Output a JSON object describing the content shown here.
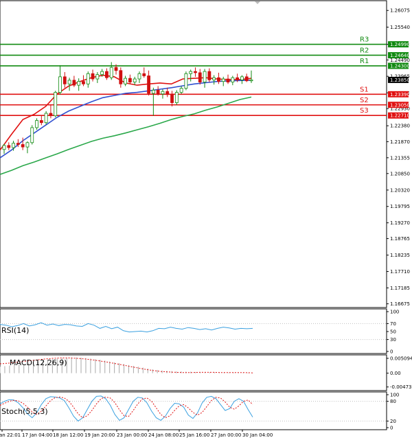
{
  "chart_data": {
    "type": "candlestick",
    "main": {
      "ylim": [
        1.166,
        1.263
      ],
      "price_ticks": [
        "1.26075",
        "1.25540",
        "1.24990",
        "1.24490",
        "1.23965",
        "1.23435",
        "1.22930",
        "1.22380",
        "1.21870",
        "1.21355",
        "1.20850",
        "1.20320",
        "1.19795",
        "1.19270",
        "1.18765",
        "1.18235",
        "1.17710",
        "1.17185",
        "1.16675"
      ],
      "current_price": {
        "label": "1.23850",
        "value": 1.2385
      },
      "levels": [
        {
          "name": "R3",
          "value": 1.2499,
          "label": "1.24990",
          "color": "#118a11"
        },
        {
          "name": "R2",
          "value": 1.2464,
          "label": "1.24640",
          "color": "#118a11"
        },
        {
          "name": "R1",
          "value": 1.243,
          "label": "1.24300",
          "color": "#118a11"
        },
        {
          "name": "S1",
          "value": 1.2339,
          "label": "1.23390",
          "color": "#e01010"
        },
        {
          "name": "S2",
          "value": 1.2305,
          "label": "1.23050",
          "color": "#e01010"
        },
        {
          "name": "S3",
          "value": 1.2271,
          "label": "1.22710",
          "color": "#e01010"
        }
      ],
      "candles": [
        [
          1.2162,
          1.218,
          1.2148,
          1.2175
        ],
        [
          1.2175,
          1.2185,
          1.216,
          1.2168
        ],
        [
          1.2168,
          1.219,
          1.2158,
          1.2182
        ],
        [
          1.2182,
          1.2195,
          1.217,
          1.2178
        ],
        [
          1.2178,
          1.22,
          1.216,
          1.217
        ],
        [
          1.217,
          1.2188,
          1.215,
          1.2184
        ],
        [
          1.2184,
          1.224,
          1.2178,
          1.2232
        ],
        [
          1.2232,
          1.2262,
          1.2225,
          1.2255
        ],
        [
          1.2255,
          1.2272,
          1.224,
          1.2248
        ],
        [
          1.2248,
          1.2285,
          1.2242,
          1.2278
        ],
        [
          1.2278,
          1.2305,
          1.2262,
          1.227
        ],
        [
          1.227,
          1.235,
          1.2265,
          1.2345
        ],
        [
          1.2345,
          1.2432,
          1.2338,
          1.2395
        ],
        [
          1.2395,
          1.241,
          1.236,
          1.2372
        ],
        [
          1.2372,
          1.2392,
          1.235,
          1.2384
        ],
        [
          1.2384,
          1.2398,
          1.2362,
          1.2368
        ],
        [
          1.2368,
          1.239,
          1.235,
          1.238
        ],
        [
          1.238,
          1.24,
          1.2365,
          1.2372
        ],
        [
          1.2372,
          1.2412,
          1.236,
          1.2405
        ],
        [
          1.2405,
          1.2418,
          1.238,
          1.2388
        ],
        [
          1.2388,
          1.241,
          1.2375,
          1.2402
        ],
        [
          1.2402,
          1.242,
          1.2395,
          1.2412
        ],
        [
          1.2412,
          1.2422,
          1.2385,
          1.2392
        ],
        [
          1.2392,
          1.2442,
          1.2385,
          1.2425
        ],
        [
          1.2425,
          1.2435,
          1.2402,
          1.2415
        ],
        [
          1.2415,
          1.2425,
          1.236,
          1.2372
        ],
        [
          1.2372,
          1.2398,
          1.2365,
          1.239
        ],
        [
          1.239,
          1.2402,
          1.2372,
          1.2378
        ],
        [
          1.2378,
          1.2395,
          1.2368,
          1.2388
        ],
        [
          1.2388,
          1.2412,
          1.2375,
          1.2405
        ],
        [
          1.2405,
          1.2425,
          1.2392,
          1.2398
        ],
        [
          1.2398,
          1.2415,
          1.2335,
          1.2342
        ],
        [
          1.2342,
          1.236,
          1.227,
          1.2352
        ],
        [
          1.2352,
          1.2365,
          1.2335,
          1.234
        ],
        [
          1.234,
          1.2355,
          1.2325,
          1.2348
        ],
        [
          1.2348,
          1.236,
          1.233,
          1.2338
        ],
        [
          1.2338,
          1.235,
          1.23,
          1.2312
        ],
        [
          1.2312,
          1.2352,
          1.2305,
          1.2345
        ],
        [
          1.2345,
          1.2365,
          1.234,
          1.2358
        ],
        [
          1.2358,
          1.2412,
          1.2352,
          1.2405
        ],
        [
          1.2405,
          1.2418,
          1.238,
          1.2412
        ],
        [
          1.2412,
          1.2425,
          1.2395,
          1.2408
        ],
        [
          1.2408,
          1.242,
          1.237,
          1.2378
        ],
        [
          1.2378,
          1.242,
          1.236,
          1.2412
        ],
        [
          1.2412,
          1.2422,
          1.2378,
          1.2385
        ],
        [
          1.2385,
          1.24,
          1.237,
          1.2392
        ],
        [
          1.2392,
          1.2408,
          1.2372,
          1.238
        ],
        [
          1.238,
          1.2395,
          1.2365,
          1.2388
        ],
        [
          1.2388,
          1.2402,
          1.2372,
          1.2378
        ],
        [
          1.2378,
          1.2398,
          1.2368,
          1.2392
        ],
        [
          1.2392,
          1.2405,
          1.2378,
          1.2385
        ],
        [
          1.2385,
          1.24,
          1.2372,
          1.2395
        ],
        [
          1.2395,
          1.2405,
          1.2378,
          1.2382
        ],
        [
          1.2382,
          1.2415,
          1.2375,
          1.2385
        ]
      ],
      "moving_averages": [
        {
          "color": "#e01010",
          "values": [
            1.216,
            1.221,
            1.2258,
            1.2275,
            1.23,
            1.234,
            1.2365,
            1.238,
            1.2392,
            1.24,
            1.2395,
            1.2375,
            1.2368,
            1.2372,
            1.2375,
            1.2372,
            1.2388,
            1.239,
            1.2392,
            1.2388,
            1.2386,
            1.2386,
            1.239
          ]
        },
        {
          "color": "#3050d0",
          "values": [
            1.2135,
            1.216,
            1.219,
            1.2215,
            1.224,
            1.2265,
            1.2285,
            1.23,
            1.2315,
            1.2328,
            1.2335,
            1.2342,
            1.2345,
            1.235,
            1.2355,
            1.236,
            1.2366,
            1.2372,
            1.2376,
            1.238,
            1.2382,
            1.2383,
            1.2384
          ]
        },
        {
          "color": "#2aa84a",
          "values": [
            1.2082,
            1.2095,
            1.211,
            1.2122,
            1.2135,
            1.2148,
            1.2162,
            1.2175,
            1.2188,
            1.2198,
            1.2206,
            1.2215,
            1.2225,
            1.2235,
            1.2246,
            1.2258,
            1.2268,
            1.2276,
            1.2288,
            1.2298,
            1.231,
            1.2322,
            1.233
          ]
        }
      ]
    },
    "rsi": {
      "label": "RSI(14)",
      "ylim": [
        0,
        100
      ],
      "levels": [
        {
          "label": "70",
          "value": 70
        },
        {
          "label": "30",
          "value": 30
        }
      ],
      "ticks": [
        {
          "label": "100",
          "value": 100
        },
        {
          "label": "70",
          "value": 70
        },
        {
          "label": "50",
          "value": 50
        },
        {
          "label": "30",
          "value": 30
        },
        {
          "label": "0",
          "value": 0
        }
      ],
      "values": [
        68,
        66,
        62,
        65,
        70,
        64,
        67,
        72,
        66,
        69,
        65,
        68,
        67,
        64,
        63,
        70,
        66,
        58,
        63,
        57,
        61,
        52,
        49,
        50,
        51,
        49,
        52,
        58,
        57,
        61,
        58,
        56,
        60,
        58,
        55,
        57,
        54,
        58,
        61,
        59,
        56,
        58,
        57,
        58
      ]
    },
    "macd": {
      "label": "MACD(12,26,9)",
      "ylim": [
        -0.0055,
        0.0058
      ],
      "ticks": [
        {
          "label": "0.005094",
          "value": 0.005094
        },
        {
          "label": "0.00",
          "value": 0
        },
        {
          "label": "-0.004731",
          "value": -0.004731
        }
      ],
      "histogram": [
        0.0022,
        0.0024,
        0.0026,
        0.0028,
        0.003,
        0.0032,
        0.0034,
        0.0036,
        0.004,
        0.0043,
        0.0046,
        0.0048,
        0.005,
        0.0052,
        0.0053,
        0.0054,
        0.0054,
        0.0053,
        0.0052,
        0.005,
        0.0048,
        0.0046,
        0.0043,
        0.004,
        0.0037,
        0.0034,
        0.0031,
        0.0028,
        0.0025,
        0.0022,
        0.0019,
        0.0016,
        0.0013,
        0.0011,
        0.0009,
        0.0008,
        0.0007,
        0.0006,
        0.0006,
        0.0005,
        0.0005,
        0.0004,
        0.0004,
        0.0004,
        0.0003,
        0.0003,
        0.0003,
        0.0003,
        0.0002,
        0.0002,
        0.0002,
        0.0002,
        0.0002,
        0.0001
      ],
      "signal": [
        0.0032,
        0.0034,
        0.0037,
        0.004,
        0.0043,
        0.0046,
        0.0049,
        0.0051,
        0.0052,
        0.0052,
        0.0051,
        0.0049,
        0.0046,
        0.0042,
        0.0038,
        0.0033,
        0.0028,
        0.0023,
        0.0018,
        0.0013,
        0.0009,
        0.0006,
        0.0004,
        0.0003,
        0.0002,
        0.0002,
        0.0003,
        0.0003,
        0.0003,
        0.0002,
        0.0002,
        0.0002,
        0.0002,
        0.0001
      ]
    },
    "stoch": {
      "label": "Stoch(5,5,3)",
      "ylim": [
        0,
        100
      ],
      "levels": [
        {
          "label": "80",
          "value": 80
        },
        {
          "label": "20",
          "value": 20
        }
      ],
      "ticks": [
        {
          "label": "100",
          "value": 100
        },
        {
          "label": "80",
          "value": 80
        },
        {
          "label": "20",
          "value": 20
        },
        {
          "label": "0",
          "value": 0
        }
      ],
      "k": [
        72,
        80,
        85,
        84,
        75,
        60,
        42,
        30,
        45,
        70,
        88,
        94,
        93,
        90,
        82,
        60,
        35,
        20,
        30,
        55,
        80,
        95,
        96,
        88,
        68,
        40,
        22,
        30,
        55,
        80,
        92,
        90,
        75,
        50,
        30,
        22,
        35,
        58,
        74,
        72,
        62,
        38,
        28,
        45,
        75,
        92,
        95,
        88,
        70,
        52,
        58,
        80,
        88,
        80,
        55,
        32
      ],
      "d": [
        68,
        74,
        80,
        83,
        81,
        74,
        62,
        48,
        40,
        50,
        66,
        82,
        91,
        93,
        90,
        80,
        62,
        42,
        30,
        36,
        52,
        72,
        88,
        93,
        90,
        76,
        54,
        36,
        34,
        52,
        72,
        87,
        90,
        80,
        60,
        40,
        30,
        36,
        52,
        66,
        70,
        60,
        46,
        38,
        46,
        64,
        82,
        92,
        90,
        78,
        62,
        56,
        66,
        80,
        84,
        70
      ]
    },
    "x_ticks": [
      "an 22:01",
      "17 Jan 04:00",
      "18 Jan 12:00",
      "19 Jan 20:00",
      "23 Jan 00:00",
      "24 Jan 08:00",
      "25 Jan 16:00",
      "27 Jan 00:00",
      "30 Jan 04:00"
    ]
  }
}
